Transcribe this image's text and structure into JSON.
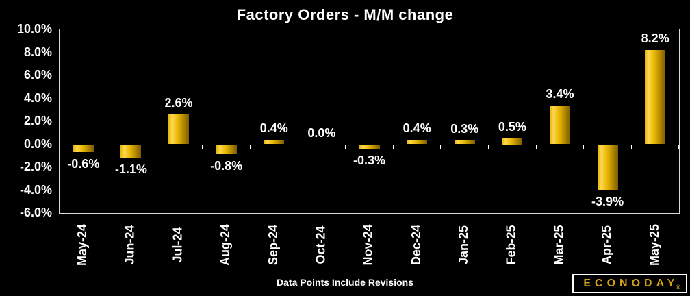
{
  "title": "Factory Orders - M/M change",
  "footer_note": "Data Points Include Revisions",
  "logo": {
    "name": "ECONODAY",
    "registered_mark": "®"
  },
  "colors": {
    "background": "#000000",
    "text": "#ffffff",
    "plot_border": "#d9d9d9",
    "axis_line": "#ffffff",
    "bar_bright": "#ffd94f",
    "bar_mid": "#e6b400",
    "bar_dark": "#7d5c00",
    "logo_gold": "#d4a019",
    "logo_border": "#ffffff"
  },
  "chart_data": {
    "type": "bar",
    "title": "Factory Orders - M/M change",
    "categories": [
      "May-24",
      "Jun-24",
      "Jul-24",
      "Aug-24",
      "Sep-24",
      "Oct-24",
      "Nov-24",
      "Dec-24",
      "Jan-25",
      "Feb-25",
      "Mar-25",
      "Apr-25",
      "May-25"
    ],
    "values": [
      -0.6,
      -1.1,
      2.6,
      -0.8,
      0.4,
      0.0,
      -0.3,
      0.4,
      0.3,
      0.5,
      3.4,
      -3.9,
      8.2
    ],
    "value_labels": [
      "-0.6%",
      "-1.1%",
      "2.6%",
      "-0.8%",
      "0.4%",
      "0.0%",
      "-0.3%",
      "0.4%",
      "0.3%",
      "0.5%",
      "3.4%",
      "-3.9%",
      "8.2%"
    ],
    "xlabel": "",
    "ylabel": "",
    "ylim": [
      -6,
      10
    ],
    "ytick_values": [
      10,
      8,
      6,
      4,
      2,
      0,
      -2,
      -4,
      -6
    ],
    "ytick_labels": [
      "10.0%",
      "8.0%",
      "6.0%",
      "4.0%",
      "2.0%",
      "0.0%",
      "-2.0%",
      "-4.0%",
      "-6.0%"
    ],
    "grid": false,
    "legend": "none",
    "annotation": "Data Points Include Revisions"
  }
}
